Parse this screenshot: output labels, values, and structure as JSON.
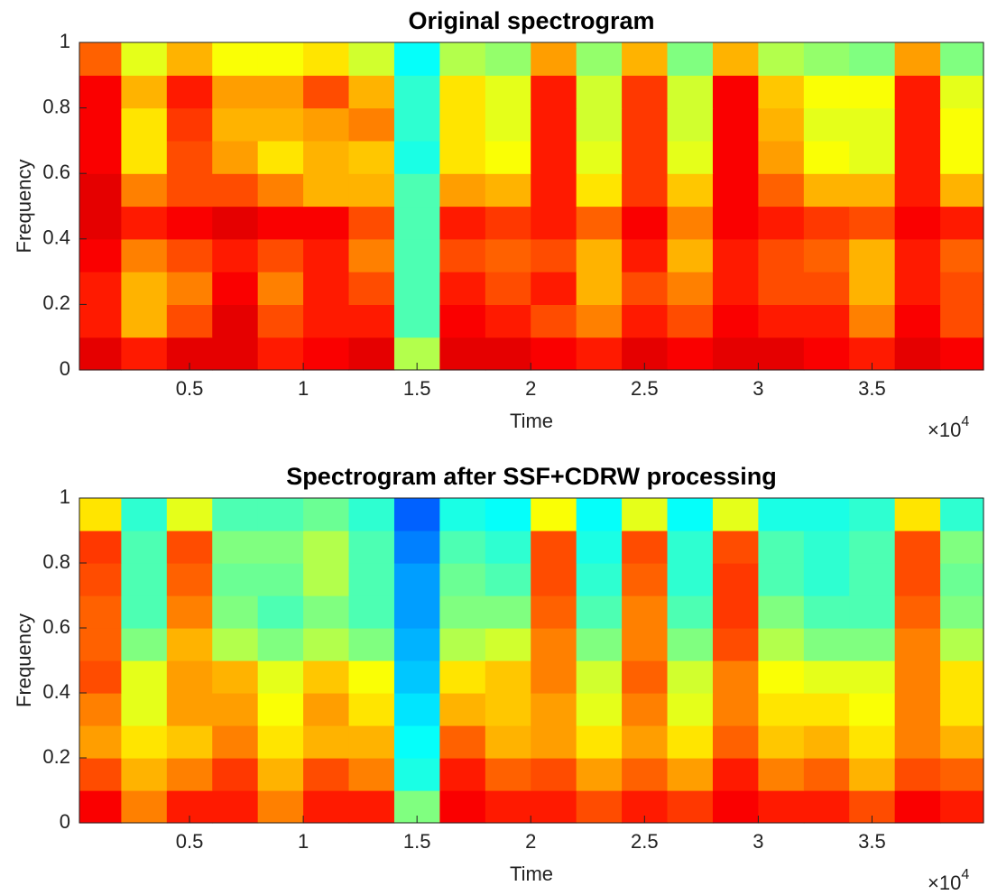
{
  "chart_data": [
    {
      "type": "heatmap",
      "title": "Original spectrogram",
      "xlabel": "Time",
      "ylabel": "Frequency",
      "x_scale_label": "×10",
      "x_scale_exponent": "4",
      "xlim": [
        0.016,
        3.99
      ],
      "ylim": [
        0,
        1
      ],
      "xticks": [
        0.5,
        1,
        1.5,
        2,
        2.5,
        3,
        3.5
      ],
      "yticks": [
        0,
        0.2,
        0.4,
        0.6,
        0.8,
        1
      ],
      "colormap": "jet",
      "clim": [
        0,
        1
      ],
      "xbins": [
        0.016,
        0.2,
        0.4,
        0.6,
        0.8,
        1,
        1.2,
        1.4,
        1.6,
        1.8,
        2,
        2.2,
        2.4,
        2.6,
        2.8,
        3,
        3.2,
        3.4,
        3.6,
        3.8,
        3.99
      ],
      "ybins": [
        0,
        0.1,
        0.2,
        0.3,
        0.4,
        0.5,
        0.6,
        0.7,
        0.8,
        0.9,
        1
      ],
      "values": [
        [
          0.9,
          0.85,
          0.9,
          0.9,
          0.85,
          0.88,
          0.9,
          0.55,
          0.9,
          0.9,
          0.88,
          0.85,
          0.9,
          0.88,
          0.9,
          0.9,
          0.88,
          0.85,
          0.9,
          0.88
        ],
        [
          0.85,
          0.7,
          0.8,
          0.9,
          0.8,
          0.85,
          0.85,
          0.45,
          0.88,
          0.85,
          0.8,
          0.75,
          0.85,
          0.8,
          0.88,
          0.85,
          0.85,
          0.75,
          0.88,
          0.8
        ],
        [
          0.85,
          0.7,
          0.75,
          0.88,
          0.75,
          0.85,
          0.8,
          0.45,
          0.85,
          0.8,
          0.85,
          0.7,
          0.8,
          0.75,
          0.85,
          0.8,
          0.8,
          0.7,
          0.85,
          0.8
        ],
        [
          0.88,
          0.75,
          0.8,
          0.85,
          0.8,
          0.85,
          0.75,
          0.45,
          0.8,
          0.78,
          0.8,
          0.7,
          0.85,
          0.7,
          0.85,
          0.8,
          0.78,
          0.7,
          0.85,
          0.78
        ],
        [
          0.9,
          0.85,
          0.88,
          0.9,
          0.88,
          0.88,
          0.8,
          0.45,
          0.85,
          0.82,
          0.85,
          0.78,
          0.88,
          0.75,
          0.88,
          0.85,
          0.82,
          0.8,
          0.88,
          0.85
        ],
        [
          0.9,
          0.75,
          0.8,
          0.8,
          0.75,
          0.7,
          0.7,
          0.45,
          0.72,
          0.7,
          0.85,
          0.65,
          0.82,
          0.68,
          0.88,
          0.78,
          0.7,
          0.7,
          0.85,
          0.7
        ],
        [
          0.88,
          0.65,
          0.8,
          0.72,
          0.65,
          0.7,
          0.68,
          0.4,
          0.65,
          0.62,
          0.85,
          0.6,
          0.82,
          0.6,
          0.88,
          0.72,
          0.62,
          0.6,
          0.85,
          0.62
        ],
        [
          0.88,
          0.65,
          0.82,
          0.7,
          0.7,
          0.72,
          0.75,
          0.42,
          0.65,
          0.6,
          0.85,
          0.58,
          0.82,
          0.58,
          0.88,
          0.7,
          0.6,
          0.6,
          0.85,
          0.62
        ],
        [
          0.88,
          0.7,
          0.85,
          0.72,
          0.72,
          0.8,
          0.7,
          0.42,
          0.65,
          0.6,
          0.85,
          0.58,
          0.82,
          0.58,
          0.88,
          0.68,
          0.62,
          0.62,
          0.85,
          0.6
        ],
        [
          0.78,
          0.6,
          0.7,
          0.62,
          0.62,
          0.65,
          0.58,
          0.38,
          0.55,
          0.52,
          0.72,
          0.52,
          0.7,
          0.5,
          0.7,
          0.55,
          0.52,
          0.5,
          0.72,
          0.5
        ]
      ]
    },
    {
      "type": "heatmap",
      "title": "Spectrogram after SSF+CDRW processing",
      "xlabel": "Time",
      "ylabel": "Frequency",
      "x_scale_label": "×10",
      "x_scale_exponent": "4",
      "xlim": [
        0.016,
        3.99
      ],
      "ylim": [
        0,
        1
      ],
      "xticks": [
        0.5,
        1,
        1.5,
        2,
        2.5,
        3,
        3.5
      ],
      "yticks": [
        0,
        0.2,
        0.4,
        0.6,
        0.8,
        1
      ],
      "colormap": "jet",
      "clim": [
        0,
        1
      ],
      "xbins": [
        0.016,
        0.2,
        0.4,
        0.6,
        0.8,
        1,
        1.2,
        1.4,
        1.6,
        1.8,
        2,
        2.2,
        2.4,
        2.6,
        2.8,
        3,
        3.2,
        3.4,
        3.6,
        3.8,
        3.99
      ],
      "ybins": [
        0,
        0.1,
        0.2,
        0.3,
        0.4,
        0.5,
        0.6,
        0.7,
        0.8,
        0.9,
        1
      ],
      "values": [
        [
          0.88,
          0.75,
          0.85,
          0.85,
          0.75,
          0.85,
          0.85,
          0.5,
          0.88,
          0.85,
          0.85,
          0.8,
          0.85,
          0.82,
          0.88,
          0.85,
          0.85,
          0.8,
          0.88,
          0.85
        ],
        [
          0.8,
          0.7,
          0.75,
          0.82,
          0.7,
          0.8,
          0.75,
          0.4,
          0.85,
          0.78,
          0.8,
          0.72,
          0.78,
          0.72,
          0.85,
          0.75,
          0.78,
          0.7,
          0.8,
          0.78
        ],
        [
          0.72,
          0.65,
          0.68,
          0.75,
          0.65,
          0.7,
          0.7,
          0.38,
          0.78,
          0.7,
          0.72,
          0.65,
          0.72,
          0.65,
          0.78,
          0.68,
          0.7,
          0.65,
          0.75,
          0.7
        ],
        [
          0.75,
          0.6,
          0.72,
          0.72,
          0.62,
          0.72,
          0.65,
          0.35,
          0.7,
          0.68,
          0.72,
          0.6,
          0.75,
          0.6,
          0.75,
          0.65,
          0.65,
          0.62,
          0.75,
          0.65
        ],
        [
          0.8,
          0.6,
          0.72,
          0.7,
          0.6,
          0.68,
          0.62,
          0.32,
          0.65,
          0.68,
          0.75,
          0.58,
          0.78,
          0.58,
          0.75,
          0.62,
          0.6,
          0.6,
          0.75,
          0.65
        ],
        [
          0.78,
          0.5,
          0.7,
          0.55,
          0.5,
          0.55,
          0.5,
          0.3,
          0.55,
          0.58,
          0.75,
          0.5,
          0.75,
          0.5,
          0.8,
          0.55,
          0.5,
          0.5,
          0.75,
          0.55
        ],
        [
          0.78,
          0.45,
          0.75,
          0.5,
          0.45,
          0.5,
          0.45,
          0.28,
          0.5,
          0.5,
          0.78,
          0.45,
          0.75,
          0.45,
          0.82,
          0.5,
          0.45,
          0.45,
          0.78,
          0.5
        ],
        [
          0.8,
          0.45,
          0.78,
          0.48,
          0.48,
          0.55,
          0.45,
          0.28,
          0.48,
          0.45,
          0.8,
          0.42,
          0.78,
          0.42,
          0.82,
          0.45,
          0.42,
          0.45,
          0.8,
          0.48
        ],
        [
          0.82,
          0.45,
          0.8,
          0.5,
          0.5,
          0.55,
          0.45,
          0.25,
          0.45,
          0.42,
          0.8,
          0.4,
          0.8,
          0.42,
          0.8,
          0.45,
          0.42,
          0.45,
          0.8,
          0.5
        ],
        [
          0.65,
          0.42,
          0.6,
          0.45,
          0.45,
          0.48,
          0.42,
          0.22,
          0.4,
          0.38,
          0.62,
          0.38,
          0.6,
          0.38,
          0.6,
          0.4,
          0.4,
          0.42,
          0.65,
          0.42
        ]
      ]
    }
  ]
}
